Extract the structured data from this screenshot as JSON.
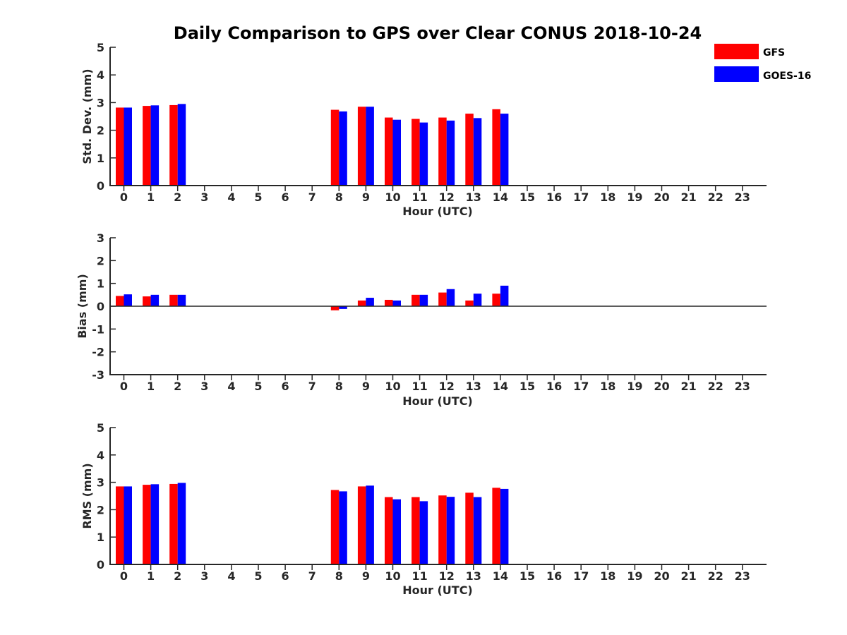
{
  "chart_data": {
    "type": "bar",
    "title": "Daily Comparison to GPS over Clear CONUS 2018-10-24",
    "categories": [
      "0",
      "1",
      "2",
      "3",
      "4",
      "5",
      "6",
      "7",
      "8",
      "9",
      "10",
      "11",
      "12",
      "13",
      "14",
      "15",
      "16",
      "17",
      "18",
      "19",
      "20",
      "21",
      "22",
      "23"
    ],
    "xlabel": "Hour (UTC)",
    "legend": {
      "position": "top-right",
      "entries": [
        {
          "name": "GFS",
          "color": "#ff0000"
        },
        {
          "name": "GOES-16",
          "color": "#0000ff"
        }
      ]
    },
    "panels": [
      {
        "id": "stddev",
        "ylabel": "Std. Dev. (mm)",
        "ylim": [
          0,
          5
        ],
        "yticks": [
          "0",
          "1",
          "2",
          "3",
          "4",
          "5"
        ],
        "series": [
          {
            "name": "GFS",
            "color": "#ff0000",
            "values": [
              2.82,
              2.88,
              2.91,
              null,
              null,
              null,
              null,
              null,
              2.74,
              2.85,
              2.46,
              2.41,
              2.46,
              2.6,
              2.76,
              null,
              null,
              null,
              null,
              null,
              null,
              null,
              null,
              null
            ]
          },
          {
            "name": "GOES-16",
            "color": "#0000ff",
            "values": [
              2.82,
              2.9,
              2.95,
              null,
              null,
              null,
              null,
              null,
              2.68,
              2.85,
              2.38,
              2.28,
              2.35,
              2.44,
              2.6,
              null,
              null,
              null,
              null,
              null,
              null,
              null,
              null,
              null
            ]
          }
        ]
      },
      {
        "id": "bias",
        "ylabel": "Bias (mm)",
        "ylim": [
          -3,
          3
        ],
        "yticks": [
          "-3",
          "-2",
          "-1",
          "0",
          "1",
          "2",
          "3"
        ],
        "series": [
          {
            "name": "GFS",
            "color": "#ff0000",
            "values": [
              0.45,
              0.43,
              0.5,
              null,
              null,
              null,
              null,
              null,
              -0.18,
              0.25,
              0.28,
              0.5,
              0.6,
              0.25,
              0.55,
              null,
              null,
              null,
              null,
              null,
              null,
              null,
              null,
              null
            ]
          },
          {
            "name": "GOES-16",
            "color": "#0000ff",
            "values": [
              0.52,
              0.5,
              0.5,
              null,
              null,
              null,
              null,
              null,
              -0.12,
              0.37,
              0.25,
              0.5,
              0.75,
              0.55,
              0.9,
              null,
              null,
              null,
              null,
              null,
              null,
              null,
              null,
              null
            ]
          }
        ]
      },
      {
        "id": "rms",
        "ylabel": "RMS (mm)",
        "ylim": [
          0,
          5
        ],
        "yticks": [
          "0",
          "1",
          "2",
          "3",
          "4",
          "5"
        ],
        "series": [
          {
            "name": "GFS",
            "color": "#ff0000",
            "values": [
              2.85,
              2.91,
              2.94,
              null,
              null,
              null,
              null,
              null,
              2.72,
              2.85,
              2.46,
              2.46,
              2.52,
              2.62,
              2.8,
              null,
              null,
              null,
              null,
              null,
              null,
              null,
              null,
              null
            ]
          },
          {
            "name": "GOES-16",
            "color": "#0000ff",
            "values": [
              2.85,
              2.93,
              2.98,
              null,
              null,
              null,
              null,
              null,
              2.67,
              2.88,
              2.38,
              2.31,
              2.47,
              2.46,
              2.76,
              null,
              null,
              null,
              null,
              null,
              null,
              null,
              null,
              null
            ]
          }
        ]
      }
    ]
  }
}
